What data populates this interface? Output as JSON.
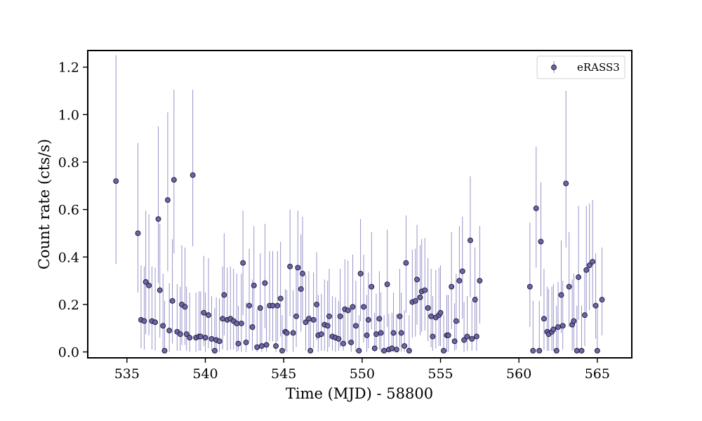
{
  "chart_data": {
    "type": "scatter",
    "title": "",
    "xlabel": "Time (MJD) - 58800",
    "ylabel": "Count rate (cts/s)",
    "xlim": [
      532.5,
      567.2
    ],
    "ylim": [
      -0.025,
      1.27
    ],
    "xticks": [
      535,
      540,
      545,
      550,
      555,
      560,
      565
    ],
    "yticks": [
      0.0,
      0.2,
      0.4,
      0.6,
      0.8,
      1.0,
      1.2
    ],
    "xtick_labels": [
      "535",
      "540",
      "545",
      "550",
      "555",
      "560",
      "565"
    ],
    "ytick_labels": [
      "0.0",
      "0.2",
      "0.4",
      "0.6",
      "0.8",
      "1.0",
      "1.2"
    ],
    "legend": {
      "position": "top-right",
      "entries": [
        "eRASS3"
      ]
    },
    "colors": {
      "marker_fill": "#6b64a8",
      "marker_edge": "#1a1a2e",
      "errorbar": "#8e88c4"
    },
    "series": [
      {
        "name": "eRASS3",
        "points": [
          [
            534.3,
            0.72,
            0.35,
            0.53
          ],
          [
            535.7,
            0.5,
            0.25,
            0.38
          ],
          [
            535.9,
            0.135,
            0.12,
            0.23
          ],
          [
            536.1,
            0.13,
            0.12,
            0.23
          ],
          [
            536.2,
            0.295,
            0.22,
            0.3
          ],
          [
            536.4,
            0.28,
            0.21,
            0.3
          ],
          [
            536.6,
            0.13,
            0.12,
            0.23
          ],
          [
            536.8,
            0.125,
            0.12,
            0.23
          ],
          [
            537.0,
            0.56,
            0.27,
            0.39
          ],
          [
            537.1,
            0.26,
            0.2,
            0.28
          ],
          [
            537.3,
            0.11,
            0.1,
            0.22
          ],
          [
            537.4,
            0.005,
            0.005,
            0.21
          ],
          [
            537.6,
            0.64,
            0.3,
            0.37
          ],
          [
            537.7,
            0.09,
            0.09,
            0.2
          ],
          [
            537.9,
            0.215,
            0.18,
            0.26
          ],
          [
            538.0,
            0.725,
            0.31,
            0.38
          ],
          [
            538.2,
            0.085,
            0.08,
            0.2
          ],
          [
            538.4,
            0.075,
            0.07,
            0.2
          ],
          [
            538.5,
            0.2,
            0.17,
            0.25
          ],
          [
            538.7,
            0.19,
            0.16,
            0.25
          ],
          [
            538.8,
            0.075,
            0.07,
            0.2
          ],
          [
            539.0,
            0.06,
            0.06,
            0.19
          ],
          [
            539.2,
            0.745,
            0.3,
            0.36
          ],
          [
            539.4,
            0.06,
            0.06,
            0.19
          ],
          [
            539.6,
            0.065,
            0.06,
            0.19
          ],
          [
            539.7,
            0.065,
            0.06,
            0.19
          ],
          [
            539.9,
            0.165,
            0.14,
            0.24
          ],
          [
            540.0,
            0.06,
            0.06,
            0.19
          ],
          [
            540.2,
            0.155,
            0.14,
            0.24
          ],
          [
            540.4,
            0.055,
            0.05,
            0.18
          ],
          [
            540.6,
            0.005,
            0.005,
            0.18
          ],
          [
            540.7,
            0.05,
            0.05,
            0.18
          ],
          [
            540.9,
            0.045,
            0.045,
            0.18
          ],
          [
            541.1,
            0.14,
            0.13,
            0.22
          ],
          [
            541.2,
            0.24,
            0.17,
            0.26
          ],
          [
            541.4,
            0.135,
            0.13,
            0.22
          ],
          [
            541.6,
            0.14,
            0.13,
            0.22
          ],
          [
            541.8,
            0.13,
            0.12,
            0.22
          ],
          [
            542.0,
            0.12,
            0.12,
            0.21
          ],
          [
            542.1,
            0.035,
            0.03,
            0.16
          ],
          [
            542.3,
            0.12,
            0.12,
            0.21
          ],
          [
            542.4,
            0.375,
            0.22,
            0.22
          ],
          [
            542.6,
            0.04,
            0.04,
            0.17
          ],
          [
            542.8,
            0.195,
            0.15,
            0.24
          ],
          [
            543.0,
            0.105,
            0.1,
            0.2
          ],
          [
            543.1,
            0.28,
            0.19,
            0.25
          ],
          [
            543.3,
            0.02,
            0.02,
            0.16
          ],
          [
            543.5,
            0.185,
            0.15,
            0.23
          ],
          [
            543.6,
            0.025,
            0.025,
            0.16
          ],
          [
            543.8,
            0.29,
            0.19,
            0.25
          ],
          [
            543.9,
            0.03,
            0.03,
            0.16
          ],
          [
            544.1,
            0.195,
            0.15,
            0.23
          ],
          [
            544.3,
            0.195,
            0.15,
            0.23
          ],
          [
            544.5,
            0.025,
            0.025,
            0.16
          ],
          [
            544.6,
            0.195,
            0.15,
            0.23
          ],
          [
            544.8,
            0.225,
            0.16,
            0.24
          ],
          [
            544.9,
            0.005,
            0.005,
            0.15
          ],
          [
            545.1,
            0.085,
            0.08,
            0.18
          ],
          [
            545.2,
            0.08,
            0.08,
            0.18
          ],
          [
            545.4,
            0.36,
            0.21,
            0.24
          ],
          [
            545.6,
            0.08,
            0.08,
            0.18
          ],
          [
            545.8,
            0.15,
            0.13,
            0.21
          ],
          [
            545.9,
            0.355,
            0.21,
            0.24
          ],
          [
            546.1,
            0.265,
            0.18,
            0.23
          ],
          [
            546.2,
            0.33,
            0.2,
            0.24
          ],
          [
            546.4,
            0.125,
            0.12,
            0.2
          ],
          [
            546.6,
            0.14,
            0.13,
            0.2
          ],
          [
            546.7,
            0.005,
            0.005,
            0.15
          ],
          [
            546.9,
            0.135,
            0.12,
            0.2
          ],
          [
            547.1,
            0.2,
            0.15,
            0.22
          ],
          [
            547.2,
            0.07,
            0.07,
            0.17
          ],
          [
            547.4,
            0.075,
            0.07,
            0.17
          ],
          [
            547.6,
            0.115,
            0.11,
            0.19
          ],
          [
            547.8,
            0.11,
            0.11,
            0.19
          ],
          [
            547.9,
            0.15,
            0.13,
            0.2
          ],
          [
            548.1,
            0.065,
            0.06,
            0.17
          ],
          [
            548.3,
            0.06,
            0.06,
            0.17
          ],
          [
            548.5,
            0.055,
            0.05,
            0.16
          ],
          [
            548.6,
            0.15,
            0.13,
            0.2
          ],
          [
            548.8,
            0.035,
            0.03,
            0.15
          ],
          [
            548.9,
            0.18,
            0.14,
            0.21
          ],
          [
            549.1,
            0.175,
            0.14,
            0.21
          ],
          [
            549.3,
            0.04,
            0.04,
            0.15
          ],
          [
            549.4,
            0.19,
            0.15,
            0.22
          ],
          [
            549.6,
            0.11,
            0.11,
            0.19
          ],
          [
            549.8,
            0.005,
            0.005,
            0.15
          ],
          [
            549.9,
            0.33,
            0.2,
            0.23
          ],
          [
            550.1,
            0.19,
            0.15,
            0.22
          ],
          [
            550.3,
            0.07,
            0.07,
            0.17
          ],
          [
            550.4,
            0.135,
            0.12,
            0.2
          ],
          [
            550.6,
            0.275,
            0.18,
            0.23
          ],
          [
            550.8,
            0.015,
            0.015,
            0.15
          ],
          [
            550.9,
            0.075,
            0.07,
            0.17
          ],
          [
            551.1,
            0.14,
            0.13,
            0.2
          ],
          [
            551.2,
            0.08,
            0.08,
            0.17
          ],
          [
            551.4,
            0.005,
            0.005,
            0.15
          ],
          [
            551.6,
            0.285,
            0.18,
            0.23
          ],
          [
            551.7,
            0.01,
            0.01,
            0.15
          ],
          [
            551.9,
            0.015,
            0.015,
            0.15
          ],
          [
            552.0,
            0.08,
            0.08,
            0.17
          ],
          [
            552.2,
            0.01,
            0.01,
            0.15
          ],
          [
            552.4,
            0.15,
            0.13,
            0.2
          ],
          [
            552.5,
            0.08,
            0.08,
            0.17
          ],
          [
            552.7,
            0.025,
            0.025,
            0.15
          ],
          [
            552.8,
            0.375,
            0.21,
            0.2
          ],
          [
            553.0,
            0.005,
            0.005,
            0.15
          ],
          [
            553.2,
            0.21,
            0.15,
            0.22
          ],
          [
            553.4,
            0.215,
            0.15,
            0.22
          ],
          [
            553.5,
            0.305,
            0.19,
            0.23
          ],
          [
            553.7,
            0.23,
            0.16,
            0.22
          ],
          [
            553.8,
            0.255,
            0.17,
            0.22
          ],
          [
            554.0,
            0.26,
            0.17,
            0.22
          ],
          [
            554.2,
            0.185,
            0.14,
            0.21
          ],
          [
            554.4,
            0.15,
            0.13,
            0.2
          ],
          [
            554.5,
            0.065,
            0.06,
            0.17
          ],
          [
            554.7,
            0.145,
            0.13,
            0.2
          ],
          [
            554.9,
            0.155,
            0.13,
            0.2
          ],
          [
            555.0,
            0.165,
            0.14,
            0.2
          ],
          [
            555.2,
            0.005,
            0.005,
            0.15
          ],
          [
            555.4,
            0.07,
            0.07,
            0.17
          ],
          [
            555.5,
            0.07,
            0.07,
            0.17
          ],
          [
            555.7,
            0.275,
            0.18,
            0.23
          ],
          [
            555.9,
            0.045,
            0.04,
            0.16
          ],
          [
            556.0,
            0.13,
            0.12,
            0.2
          ],
          [
            556.2,
            0.3,
            0.18,
            0.23
          ],
          [
            556.4,
            0.34,
            0.2,
            0.23
          ],
          [
            556.5,
            0.05,
            0.05,
            0.16
          ],
          [
            556.7,
            0.065,
            0.06,
            0.17
          ],
          [
            556.9,
            0.47,
            0.24,
            0.27
          ],
          [
            557.0,
            0.055,
            0.05,
            0.16
          ],
          [
            557.2,
            0.22,
            0.16,
            0.22
          ],
          [
            557.3,
            0.065,
            0.06,
            0.17
          ],
          [
            557.5,
            0.3,
            0.18,
            0.23
          ],
          [
            560.7,
            0.275,
            0.17,
            0.27
          ],
          [
            560.9,
            0.005,
            0.005,
            0.21
          ],
          [
            561.1,
            0.605,
            0.25,
            0.26
          ],
          [
            561.3,
            0.005,
            0.005,
            0.21
          ],
          [
            561.4,
            0.465,
            0.23,
            0.25
          ],
          [
            561.6,
            0.14,
            0.13,
            0.21
          ],
          [
            561.8,
            0.085,
            0.08,
            0.19
          ],
          [
            561.9,
            0.075,
            0.07,
            0.19
          ],
          [
            562.1,
            0.085,
            0.08,
            0.19
          ],
          [
            562.2,
            0.095,
            0.09,
            0.19
          ],
          [
            562.4,
            0.005,
            0.005,
            0.19
          ],
          [
            562.5,
            0.105,
            0.1,
            0.19
          ],
          [
            562.7,
            0.24,
            0.16,
            0.23
          ],
          [
            562.8,
            0.11,
            0.1,
            0.19
          ],
          [
            563.0,
            0.71,
            0.27,
            0.39
          ],
          [
            563.2,
            0.275,
            0.17,
            0.23
          ],
          [
            563.4,
            0.115,
            0.11,
            0.19
          ],
          [
            563.5,
            0.13,
            0.12,
            0.2
          ],
          [
            563.7,
            0.005,
            0.005,
            0.19
          ],
          [
            563.8,
            0.315,
            0.18,
            0.3
          ],
          [
            564.0,
            0.005,
            0.005,
            0.19
          ],
          [
            564.2,
            0.155,
            0.13,
            0.2
          ],
          [
            564.3,
            0.345,
            0.19,
            0.27
          ],
          [
            564.5,
            0.365,
            0.19,
            0.26
          ],
          [
            564.7,
            0.38,
            0.19,
            0.26
          ],
          [
            564.9,
            0.195,
            0.14,
            0.22
          ],
          [
            565.0,
            0.005,
            0.005,
            0.19
          ],
          [
            565.3,
            0.22,
            0.15,
            0.22
          ]
        ]
      }
    ]
  }
}
